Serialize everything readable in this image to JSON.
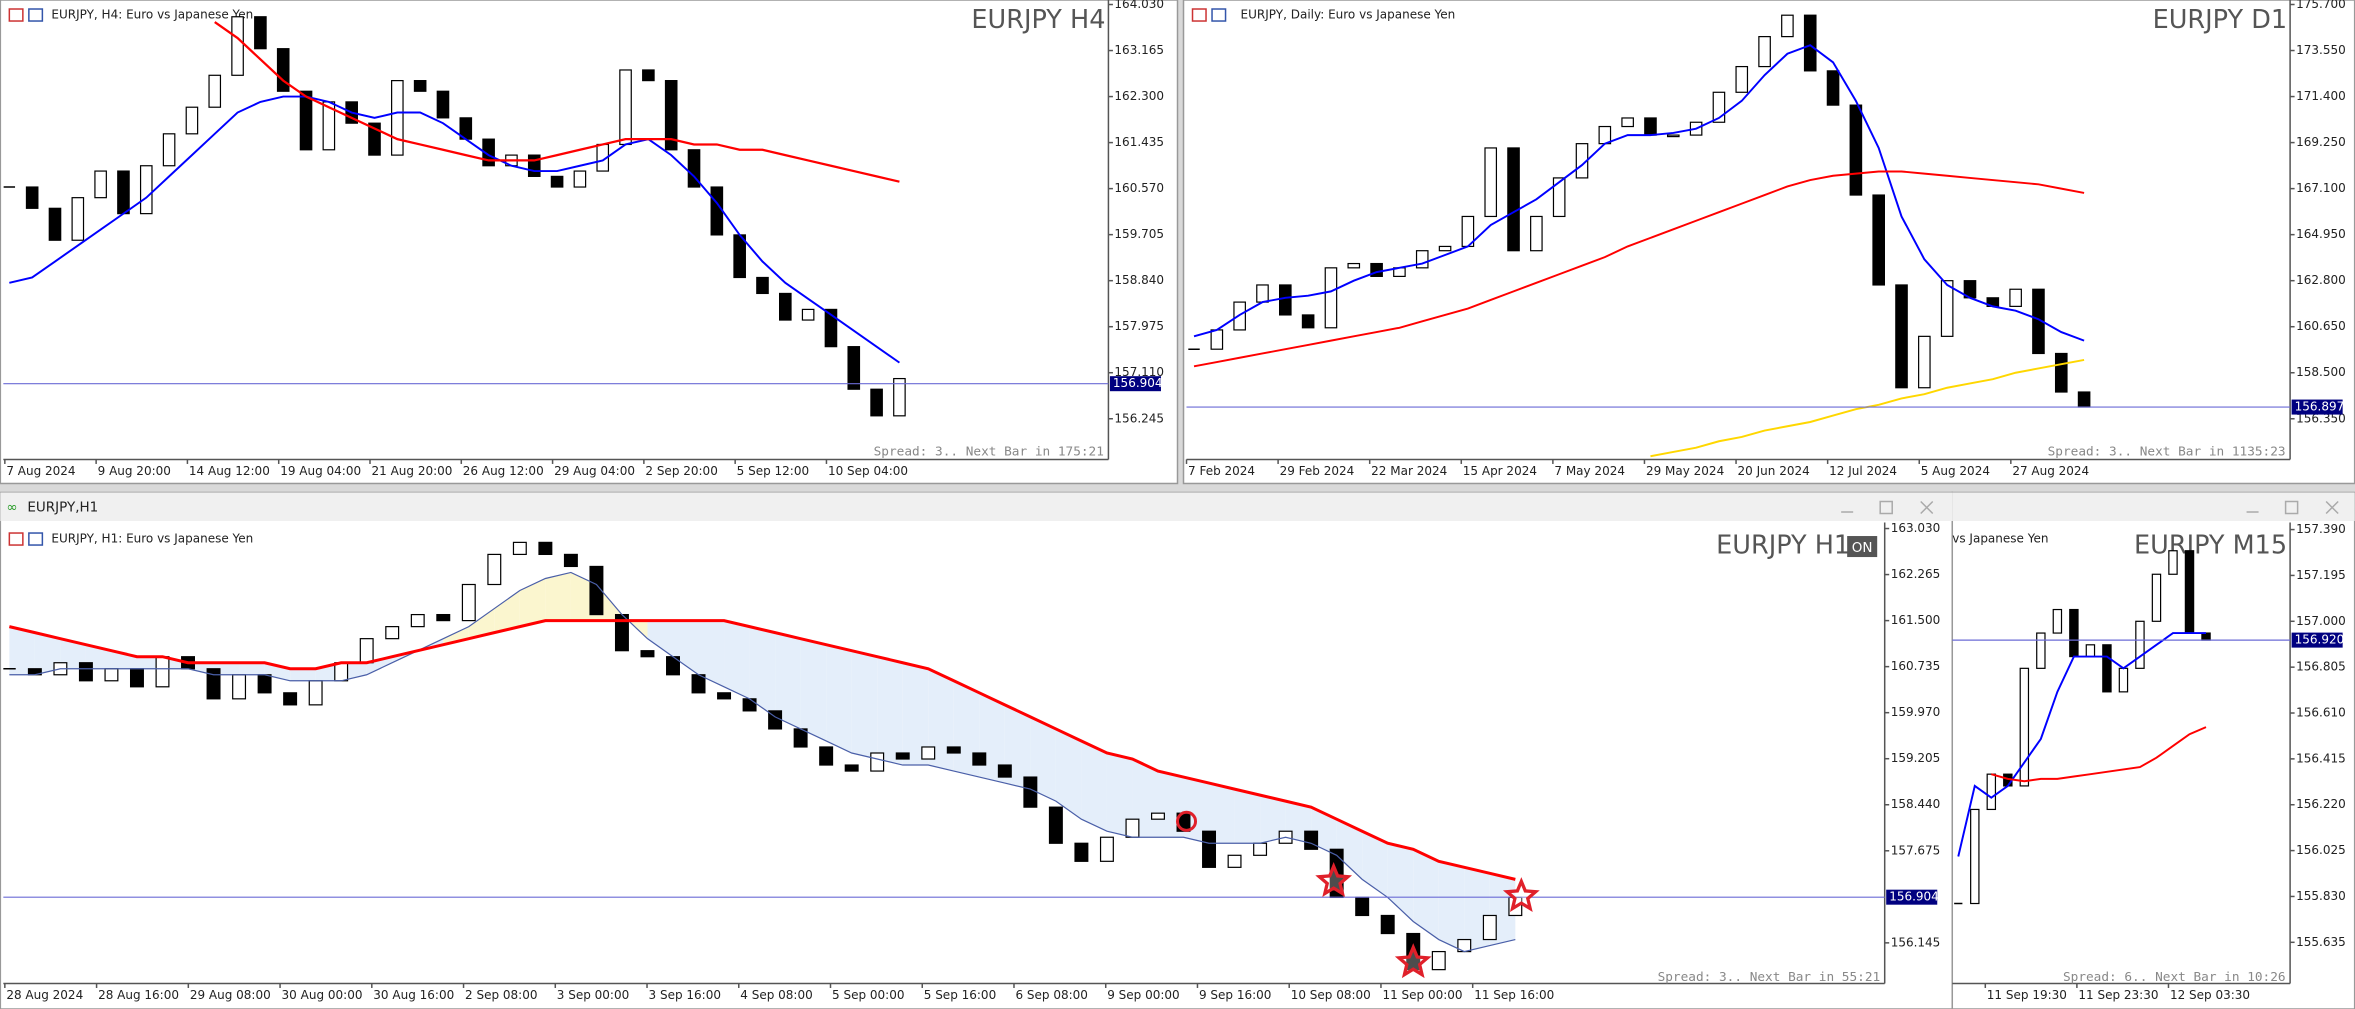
{
  "windows": [
    {
      "caption": "EURJPY, H4:  Euro vs Japanese Yen",
      "symbol_label": "EURJPY H4",
      "status": "Spread: 3.. Next Bar in 175:21",
      "ylim": [
        155.48,
        164.115
      ],
      "price_ticks": [
        {
          "value": 164.03,
          "label": "164.030"
        },
        {
          "value": 163.165,
          "label": "163.165"
        },
        {
          "value": 162.3,
          "label": "162.300"
        },
        {
          "value": 161.435,
          "label": "161.435"
        },
        {
          "value": 160.57,
          "label": "160.570"
        },
        {
          "value": 159.705,
          "label": "159.705"
        },
        {
          "value": 158.84,
          "label": "158.840"
        },
        {
          "value": 157.975,
          "label": "157.975"
        },
        {
          "value": 157.11,
          "label": "157.110"
        },
        {
          "value": 156.245,
          "label": "156.245"
        }
      ],
      "current": {
        "value": 156.904,
        "label": "156.904"
      },
      "time_labels": [
        "7 Aug 2024",
        "9 Aug 20:00",
        "14 Aug 12:00",
        "19 Aug 04:00",
        "21 Aug 20:00",
        "26 Aug 12:00",
        "29 Aug 04:00",
        "2 Sep 20:00",
        "5 Sep 12:00",
        "10 Sep 04:00"
      ],
      "closes": [
        160.6,
        160.2,
        159.6,
        160.4,
        160.9,
        160.1,
        161.0,
        161.6,
        162.1,
        162.7,
        163.8,
        163.2,
        162.4,
        161.3,
        162.2,
        161.8,
        161.2,
        162.6,
        162.4,
        161.9,
        161.5,
        161.0,
        161.2,
        160.8,
        160.6,
        160.9,
        161.4,
        162.8,
        162.6,
        161.3,
        160.6,
        159.7,
        158.9,
        158.6,
        158.1,
        158.3,
        157.6,
        156.8,
        156.3,
        157.0
      ],
      "lines": [
        {
          "color": "#0000ff",
          "width": 1.3,
          "values": [
            158.8,
            158.9,
            159.2,
            159.5,
            159.8,
            160.1,
            160.4,
            160.8,
            161.2,
            161.6,
            162.0,
            162.2,
            162.3,
            162.3,
            162.2,
            162.0,
            161.9,
            162.0,
            162.0,
            161.8,
            161.5,
            161.2,
            161.0,
            160.9,
            160.9,
            161.0,
            161.1,
            161.4,
            161.5,
            161.2,
            160.8,
            160.3,
            159.7,
            159.2,
            158.8,
            158.5,
            158.2,
            157.9,
            157.6,
            157.3
          ]
        },
        {
          "color": "#ff0000",
          "width": 1.5,
          "values": [
            null,
            null,
            null,
            null,
            null,
            null,
            null,
            null,
            null,
            163.7,
            163.4,
            163.0,
            162.6,
            162.3,
            162.1,
            161.9,
            161.7,
            161.5,
            161.4,
            161.3,
            161.2,
            161.1,
            161.1,
            161.1,
            161.2,
            161.3,
            161.4,
            161.5,
            161.5,
            161.5,
            161.4,
            161.4,
            161.3,
            161.3,
            161.2,
            161.1,
            161.0,
            160.9,
            160.8,
            160.7
          ]
        }
      ]
    },
    {
      "caption": "EURJPY, Daily:  Euro vs Japanese Yen",
      "symbol_label": "EURJPY D1",
      "status": "Spread: 3.. Next Bar in 1135:23",
      "ylim": [
        154.45,
        175.91
      ],
      "price_ticks": [
        {
          "value": 175.7,
          "label": "175.700"
        },
        {
          "value": 173.55,
          "label": "173.550"
        },
        {
          "value": 171.4,
          "label": "171.400"
        },
        {
          "value": 169.25,
          "label": "169.250"
        },
        {
          "value": 167.1,
          "label": "167.100"
        },
        {
          "value": 164.95,
          "label": "164.950"
        },
        {
          "value": 162.8,
          "label": "162.800"
        },
        {
          "value": 160.65,
          "label": "160.650"
        },
        {
          "value": 158.5,
          "label": "158.500"
        },
        {
          "value": 156.35,
          "label": "156.350"
        }
      ],
      "current": {
        "value": 156.897,
        "label": "156.897"
      },
      "time_labels": [
        "7 Feb 2024",
        "29 Feb 2024",
        "22 Mar 2024",
        "15 Apr 2024",
        "7 May 2024",
        "29 May 2024",
        "20 Jun 2024",
        "12 Jul 2024",
        "5 Aug 2024",
        "27 Aug 2024"
      ],
      "closes": [
        159.6,
        160.5,
        161.8,
        162.6,
        161.2,
        160.6,
        163.4,
        163.6,
        163.0,
        163.4,
        164.2,
        164.4,
        165.8,
        169.0,
        164.2,
        165.8,
        167.6,
        169.2,
        170.0,
        170.4,
        169.6,
        169.6,
        170.2,
        171.6,
        172.8,
        174.2,
        175.2,
        172.6,
        171.0,
        166.8,
        162.6,
        157.8,
        160.2,
        162.8,
        162.0,
        161.6,
        162.4,
        159.4,
        157.6,
        156.9
      ],
      "lines": [
        {
          "color": "#0000ff",
          "width": 1.3,
          "values": [
            160.2,
            160.5,
            161.2,
            161.8,
            162.0,
            162.1,
            162.3,
            162.8,
            163.2,
            163.4,
            163.6,
            164.0,
            164.4,
            165.4,
            166.0,
            166.6,
            167.4,
            168.2,
            169.2,
            169.6,
            169.6,
            169.7,
            169.9,
            170.4,
            171.2,
            172.4,
            173.4,
            173.8,
            173.0,
            171.2,
            169.0,
            165.8,
            163.8,
            162.6,
            162.0,
            161.6,
            161.4,
            161.0,
            160.4,
            160.0
          ]
        },
        {
          "color": "#ff0000",
          "width": 1.3,
          "values": [
            158.8,
            159.0,
            159.2,
            159.4,
            159.6,
            159.8,
            160.0,
            160.2,
            160.4,
            160.6,
            160.9,
            161.2,
            161.5,
            161.9,
            162.3,
            162.7,
            163.1,
            163.5,
            163.9,
            164.4,
            164.8,
            165.2,
            165.6,
            166.0,
            166.4,
            166.8,
            167.2,
            167.5,
            167.7,
            167.8,
            167.9,
            167.9,
            167.8,
            167.7,
            167.6,
            167.5,
            167.4,
            167.3,
            167.1,
            166.9
          ]
        },
        {
          "color": "#ffd700",
          "width": 1.3,
          "values": [
            null,
            null,
            null,
            null,
            null,
            null,
            null,
            null,
            null,
            null,
            null,
            null,
            null,
            null,
            null,
            null,
            null,
            null,
            null,
            null,
            154.6,
            154.8,
            155.0,
            155.3,
            155.5,
            155.8,
            156.0,
            156.2,
            156.5,
            156.8,
            157.0,
            157.3,
            157.5,
            157.8,
            158.0,
            158.2,
            158.5,
            158.7,
            158.9,
            159.1
          ]
        }
      ]
    },
    {
      "window_title": "EURJPY,H1",
      "caption": "EURJPY, H1:  Euro vs Japanese Yen",
      "symbol_label": "EURJPY H1",
      "badge": "ON",
      "status": "Spread: 3.. Next Bar in 55:21",
      "ylim": [
        155.47,
        163.13
      ],
      "price_ticks": [
        {
          "value": 163.03,
          "label": "163.030"
        },
        {
          "value": 162.265,
          "label": "162.265"
        },
        {
          "value": 161.5,
          "label": "161.500"
        },
        {
          "value": 160.735,
          "label": "160.735"
        },
        {
          "value": 159.97,
          "label": "159.970"
        },
        {
          "value": 159.205,
          "label": "159.205"
        },
        {
          "value": 158.44,
          "label": "158.440"
        },
        {
          "value": 157.675,
          "label": "157.675"
        },
        {
          "value": 156.145,
          "label": "156.145"
        }
      ],
      "current": {
        "value": 156.904,
        "label": "156.904"
      },
      "time_labels": [
        "28 Aug 2024",
        "28 Aug 16:00",
        "29 Aug 08:00",
        "30 Aug 00:00",
        "30 Aug 16:00",
        "2 Sep 08:00",
        "3 Sep 00:00",
        "3 Sep 16:00",
        "4 Sep 08:00",
        "5 Sep 00:00",
        "5 Sep 16:00",
        "6 Sep 08:00",
        "9 Sep 00:00",
        "9 Sep 16:00",
        "10 Sep 08:00",
        "11 Sep 00:00",
        "11 Sep 16:00"
      ],
      "closes": [
        160.7,
        160.6,
        160.8,
        160.5,
        160.7,
        160.4,
        160.9,
        160.7,
        160.2,
        160.6,
        160.3,
        160.1,
        160.5,
        160.8,
        161.2,
        161.4,
        161.6,
        161.5,
        162.1,
        162.6,
        162.8,
        162.6,
        162.4,
        161.6,
        161.0,
        160.9,
        160.6,
        160.3,
        160.2,
        160.0,
        159.7,
        159.4,
        159.1,
        159.0,
        159.3,
        159.2,
        159.4,
        159.3,
        159.1,
        158.9,
        158.4,
        157.8,
        157.5,
        157.9,
        158.2,
        158.3,
        158.0,
        157.4,
        157.6,
        157.8,
        158.0,
        157.7,
        156.9,
        156.6,
        156.3,
        155.7,
        156.0,
        156.2,
        156.6,
        156.9
      ],
      "cloud_colors": [
        "#fbf6cf",
        "#e4eefa"
      ],
      "lines": [
        {
          "color": "#4a5fa8",
          "width": 0.8,
          "values": [
            160.6,
            160.6,
            160.7,
            160.7,
            160.7,
            160.7,
            160.7,
            160.7,
            160.6,
            160.6,
            160.6,
            160.5,
            160.5,
            160.5,
            160.6,
            160.8,
            161.0,
            161.2,
            161.4,
            161.7,
            162.0,
            162.2,
            162.3,
            162.1,
            161.6,
            161.2,
            160.9,
            160.6,
            160.4,
            160.2,
            159.9,
            159.7,
            159.5,
            159.3,
            159.2,
            159.1,
            159.1,
            159.0,
            158.9,
            158.8,
            158.7,
            158.5,
            158.2,
            158.0,
            157.9,
            157.9,
            157.9,
            157.8,
            157.8,
            157.8,
            157.9,
            157.8,
            157.6,
            157.2,
            156.9,
            156.5,
            156.2,
            156.0,
            156.1,
            156.2
          ]
        },
        {
          "color": "#ff0000",
          "width": 2,
          "values": [
            161.4,
            161.3,
            161.2,
            161.1,
            161.0,
            160.9,
            160.9,
            160.8,
            160.8,
            160.8,
            160.8,
            160.7,
            160.7,
            160.8,
            160.8,
            160.9,
            161.0,
            161.1,
            161.2,
            161.3,
            161.4,
            161.5,
            161.5,
            161.5,
            161.5,
            161.5,
            161.5,
            161.5,
            161.5,
            161.4,
            161.3,
            161.2,
            161.1,
            161.0,
            160.9,
            160.8,
            160.7,
            160.5,
            160.3,
            160.1,
            159.9,
            159.7,
            159.5,
            159.3,
            159.2,
            159.0,
            158.9,
            158.8,
            158.7,
            158.6,
            158.5,
            158.4,
            158.2,
            158.0,
            157.8,
            157.7,
            157.5,
            157.4,
            157.3,
            157.2
          ]
        }
      ]
    },
    {
      "caption": "vs Japanese Yen",
      "symbol_label": "EURJPY M15",
      "status": "Spread: 6.. Next Bar in 10:26",
      "ylim": [
        155.46,
        157.42
      ],
      "price_ticks": [
        {
          "value": 157.39,
          "label": "157.390"
        },
        {
          "value": 157.195,
          "label": "157.195"
        },
        {
          "value": 157.0,
          "label": "157.000"
        },
        {
          "value": 156.805,
          "label": "156.805"
        },
        {
          "value": 156.61,
          "label": "156.610"
        },
        {
          "value": 156.415,
          "label": "156.415"
        },
        {
          "value": 156.22,
          "label": "156.220"
        },
        {
          "value": 156.025,
          "label": "156.025"
        },
        {
          "value": 155.83,
          "label": "155.830"
        },
        {
          "value": 155.635,
          "label": "155.635"
        }
      ],
      "current": {
        "value": 156.92,
        "label": "156.920"
      },
      "time_labels": [
        "11 Sep 19:30",
        "11 Sep 23:30",
        "12 Sep 03:30"
      ],
      "closes": [
        155.8,
        156.2,
        156.35,
        156.3,
        156.8,
        156.95,
        157.05,
        156.85,
        156.9,
        156.7,
        156.8,
        157.0,
        157.2,
        157.3,
        156.95,
        156.92
      ],
      "lines": [
        {
          "color": "#0000ff",
          "width": 1.3,
          "values": [
            156.0,
            156.3,
            156.25,
            156.3,
            156.4,
            156.5,
            156.7,
            156.85,
            156.85,
            156.85,
            156.8,
            156.85,
            156.9,
            156.95,
            156.95,
            156.95
          ]
        },
        {
          "color": "#ff0000",
          "width": 1.3,
          "values": [
            null,
            null,
            156.35,
            156.33,
            156.32,
            156.33,
            156.33,
            156.34,
            156.35,
            156.36,
            156.37,
            156.38,
            156.42,
            156.47,
            156.52,
            156.55
          ]
        }
      ]
    }
  ]
}
